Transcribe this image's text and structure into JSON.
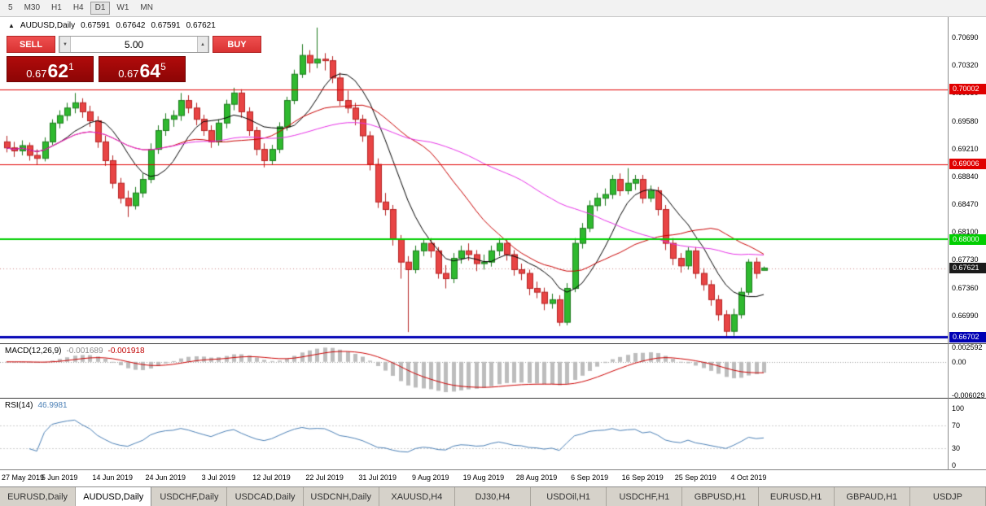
{
  "toolbar": {
    "timeframes": [
      {
        "label": "5",
        "active": false
      },
      {
        "label": "M30",
        "active": false
      },
      {
        "label": "H1",
        "active": false
      },
      {
        "label": "H4",
        "active": false
      },
      {
        "label": "D1",
        "active": true
      },
      {
        "label": "W1",
        "active": false
      },
      {
        "label": "MN",
        "active": false
      }
    ]
  },
  "chart_header": {
    "collapse_icon": "▲",
    "symbol_label": "AUDUSD,Daily",
    "open": "0.67591",
    "high": "0.67642",
    "low": "0.67591",
    "close": "0.67621"
  },
  "trade_widget": {
    "sell_label": "SELL",
    "buy_label": "BUY",
    "volume": "5.00",
    "spinner_down": "▼",
    "spinner_up": "▲",
    "sell_price": {
      "prefix": "0.67",
      "big": "62",
      "sup": "1"
    },
    "buy_price": {
      "prefix": "0.67",
      "big": "64",
      "sup": "5"
    }
  },
  "chart_data": {
    "type": "candlestick",
    "symbol": "AUDUSD",
    "timeframe": "Daily",
    "price_range": {
      "max": 0.7096,
      "min": 0.6662
    },
    "y_axis_labels": [
      "0.70690",
      "0.70320",
      "0.69950",
      "0.69580",
      "0.69210",
      "0.68840",
      "0.68470",
      "0.68100",
      "0.67730",
      "0.67360",
      "0.66990"
    ],
    "price_lines": [
      {
        "price": 0.70002,
        "label": "0.70002",
        "color": "#e00000",
        "width": 1
      },
      {
        "price": 0.69006,
        "label": "0.69006",
        "color": "#e00000",
        "width": 1
      },
      {
        "price": 0.68,
        "label": "0.68000",
        "color": "#00ce00",
        "width": 2
      },
      {
        "price": 0.66702,
        "label": "0.66702",
        "color": "#0000b4",
        "width": 3
      }
    ],
    "current_price": {
      "price": 0.67621,
      "label": "0.67621",
      "color": "#1b1b1b"
    },
    "moving_averages": [
      {
        "period": 8,
        "color": "#000000"
      },
      {
        "period": 20,
        "color": "#c80000"
      },
      {
        "period": 40,
        "color": "#e632e6"
      }
    ],
    "style": {
      "up_fill": "#2fb92f",
      "up_border": "#1d7a1d",
      "down_fill": "#e84545",
      "down_border": "#b52222",
      "macd_hist": "#bdbdbd",
      "macd_signal": "#cc0000",
      "rsi_line": "#4a7fb5",
      "bid_line": "#cc8888"
    },
    "x_labels": [
      {
        "i": 0,
        "t": "27 May 2019"
      },
      {
        "i": 7,
        "t": "5 Jun 2019"
      },
      {
        "i": 14,
        "t": "14 Jun 2019"
      },
      {
        "i": 21,
        "t": "24 Jun 2019"
      },
      {
        "i": 28,
        "t": "3 Jul 2019"
      },
      {
        "i": 35,
        "t": "12 Jul 2019"
      },
      {
        "i": 42,
        "t": "22 Jul 2019"
      },
      {
        "i": 49,
        "t": "31 Jul 2019"
      },
      {
        "i": 56,
        "t": "9 Aug 2019"
      },
      {
        "i": 63,
        "t": "19 Aug 2019"
      },
      {
        "i": 70,
        "t": "28 Aug 2019"
      },
      {
        "i": 77,
        "t": "6 Sep 2019"
      },
      {
        "i": 84,
        "t": "16 Sep 2019"
      },
      {
        "i": 91,
        "t": "25 Sep 2019"
      },
      {
        "i": 98,
        "t": "4 Oct 2019"
      }
    ],
    "candles": [
      [
        0.693,
        0.6938,
        0.6916,
        0.6922
      ],
      [
        0.6922,
        0.693,
        0.691,
        0.6918
      ],
      [
        0.6918,
        0.6932,
        0.6912,
        0.6925
      ],
      [
        0.6925,
        0.6929,
        0.6905,
        0.6912
      ],
      [
        0.6912,
        0.692,
        0.69,
        0.6908
      ],
      [
        0.6908,
        0.6936,
        0.6904,
        0.693
      ],
      [
        0.693,
        0.696,
        0.6926,
        0.6955
      ],
      [
        0.6955,
        0.6972,
        0.6948,
        0.6965
      ],
      [
        0.6965,
        0.6982,
        0.6958,
        0.6975
      ],
      [
        0.6975,
        0.6995,
        0.6968,
        0.6982
      ],
      [
        0.6982,
        0.6988,
        0.6962,
        0.697
      ],
      [
        0.697,
        0.6978,
        0.695,
        0.6958
      ],
      [
        0.6958,
        0.6964,
        0.6922,
        0.693
      ],
      [
        0.693,
        0.6938,
        0.6898,
        0.6905
      ],
      [
        0.6905,
        0.6912,
        0.6868,
        0.6875
      ],
      [
        0.6875,
        0.6882,
        0.6848,
        0.6855
      ],
      [
        0.6855,
        0.6865,
        0.683,
        0.6845
      ],
      [
        0.6845,
        0.687,
        0.684,
        0.6862
      ],
      [
        0.6862,
        0.6888,
        0.6856,
        0.688
      ],
      [
        0.688,
        0.6928,
        0.6875,
        0.692
      ],
      [
        0.692,
        0.6952,
        0.6914,
        0.6945
      ],
      [
        0.6945,
        0.6968,
        0.6938,
        0.696
      ],
      [
        0.696,
        0.6972,
        0.695,
        0.6965
      ],
      [
        0.6965,
        0.6995,
        0.6958,
        0.6985
      ],
      [
        0.6985,
        0.6992,
        0.6968,
        0.6975
      ],
      [
        0.6975,
        0.6982,
        0.6952,
        0.696
      ],
      [
        0.696,
        0.6966,
        0.6938,
        0.6945
      ],
      [
        0.6945,
        0.6952,
        0.6922,
        0.693
      ],
      [
        0.693,
        0.696,
        0.6925,
        0.6955
      ],
      [
        0.6955,
        0.6986,
        0.6948,
        0.698
      ],
      [
        0.698,
        0.7002,
        0.6972,
        0.6995
      ],
      [
        0.6995,
        0.7,
        0.6962,
        0.697
      ],
      [
        0.697,
        0.6976,
        0.6938,
        0.6945
      ],
      [
        0.6945,
        0.695,
        0.6912,
        0.692
      ],
      [
        0.692,
        0.6928,
        0.6896,
        0.6905
      ],
      [
        0.6905,
        0.6926,
        0.69,
        0.692
      ],
      [
        0.692,
        0.6956,
        0.6915,
        0.695
      ],
      [
        0.695,
        0.699,
        0.6945,
        0.6985
      ],
      [
        0.6985,
        0.7026,
        0.698,
        0.702
      ],
      [
        0.702,
        0.706,
        0.7015,
        0.7045
      ],
      [
        0.7045,
        0.7052,
        0.7022,
        0.7035
      ],
      [
        0.7035,
        0.7082,
        0.7028,
        0.704
      ],
      [
        0.704,
        0.7048,
        0.7025,
        0.7038
      ],
      [
        0.7038,
        0.7044,
        0.7008,
        0.7015
      ],
      [
        0.7015,
        0.7022,
        0.6978,
        0.6985
      ],
      [
        0.6985,
        0.6998,
        0.6968,
        0.6975
      ],
      [
        0.6975,
        0.6982,
        0.6952,
        0.696
      ],
      [
        0.696,
        0.6966,
        0.693,
        0.6938
      ],
      [
        0.6938,
        0.6944,
        0.6892,
        0.69
      ],
      [
        0.69,
        0.6908,
        0.6842,
        0.685
      ],
      [
        0.685,
        0.6862,
        0.6832,
        0.684
      ],
      [
        0.684,
        0.6846,
        0.6792,
        0.68
      ],
      [
        0.68,
        0.6806,
        0.6748,
        0.677
      ],
      [
        0.677,
        0.6778,
        0.6677,
        0.676
      ],
      [
        0.676,
        0.6792,
        0.6755,
        0.6785
      ],
      [
        0.6785,
        0.68,
        0.6778,
        0.6795
      ],
      [
        0.6795,
        0.6802,
        0.6776,
        0.6785
      ],
      [
        0.6785,
        0.679,
        0.6748,
        0.6755
      ],
      [
        0.6755,
        0.6766,
        0.6735,
        0.6748
      ],
      [
        0.6748,
        0.6782,
        0.6742,
        0.6775
      ],
      [
        0.6775,
        0.6792,
        0.6768,
        0.6785
      ],
      [
        0.6785,
        0.6795,
        0.6772,
        0.678
      ],
      [
        0.678,
        0.6786,
        0.6758,
        0.6768
      ],
      [
        0.6768,
        0.678,
        0.676,
        0.677
      ],
      [
        0.677,
        0.6792,
        0.6764,
        0.6785
      ],
      [
        0.6785,
        0.6802,
        0.6778,
        0.6795
      ],
      [
        0.6795,
        0.68,
        0.6772,
        0.678
      ],
      [
        0.678,
        0.6786,
        0.6752,
        0.676
      ],
      [
        0.676,
        0.6768,
        0.6746,
        0.6755
      ],
      [
        0.6755,
        0.676,
        0.6726,
        0.6735
      ],
      [
        0.6735,
        0.6744,
        0.6722,
        0.673
      ],
      [
        0.673,
        0.6736,
        0.6706,
        0.6715
      ],
      [
        0.6715,
        0.6728,
        0.6708,
        0.672
      ],
      [
        0.672,
        0.6726,
        0.6685,
        0.669
      ],
      [
        0.669,
        0.6742,
        0.6686,
        0.6735
      ],
      [
        0.6735,
        0.6802,
        0.673,
        0.6795
      ],
      [
        0.6795,
        0.6822,
        0.6788,
        0.6815
      ],
      [
        0.6815,
        0.6852,
        0.681,
        0.6845
      ],
      [
        0.6845,
        0.6862,
        0.6838,
        0.6855
      ],
      [
        0.6855,
        0.6868,
        0.6845,
        0.686
      ],
      [
        0.686,
        0.6886,
        0.6854,
        0.688
      ],
      [
        0.688,
        0.6888,
        0.6858,
        0.6865
      ],
      [
        0.6865,
        0.6895,
        0.686,
        0.6875
      ],
      [
        0.6875,
        0.6886,
        0.6866,
        0.688
      ],
      [
        0.688,
        0.6886,
        0.6848,
        0.6855
      ],
      [
        0.6855,
        0.6872,
        0.685,
        0.6865
      ],
      [
        0.6865,
        0.687,
        0.6832,
        0.684
      ],
      [
        0.684,
        0.6846,
        0.6786,
        0.6795
      ],
      [
        0.6795,
        0.6802,
        0.6766,
        0.6775
      ],
      [
        0.6775,
        0.6782,
        0.6756,
        0.6765
      ],
      [
        0.6765,
        0.679,
        0.676,
        0.6785
      ],
      [
        0.6785,
        0.679,
        0.6748,
        0.6755
      ],
      [
        0.6755,
        0.6762,
        0.6732,
        0.674
      ],
      [
        0.674,
        0.6746,
        0.6712,
        0.672
      ],
      [
        0.672,
        0.6726,
        0.6692,
        0.67
      ],
      [
        0.67,
        0.6706,
        0.667,
        0.6678
      ],
      [
        0.6678,
        0.6708,
        0.6672,
        0.67
      ],
      [
        0.67,
        0.6736,
        0.6695,
        0.673
      ],
      [
        0.673,
        0.6774,
        0.6726,
        0.677
      ],
      [
        0.677,
        0.6776,
        0.6748,
        0.6755
      ],
      [
        0.67591,
        0.67642,
        0.67591,
        0.67621
      ]
    ],
    "macd": {
      "name": "MACD(12,26,9)",
      "value_main": "-0.001689",
      "value_signal": "-0.001918",
      "fast": 12,
      "slow": 26,
      "signal": 9,
      "scale_labels": [
        "0.002592",
        "0.00",
        "-0.006029"
      ],
      "range": {
        "max": 0.0032,
        "min": -0.0065
      }
    },
    "rsi": {
      "name": "RSI(14)",
      "value": "46.9981",
      "period": 14,
      "levels": [
        100,
        70,
        30,
        0
      ],
      "range": {
        "max": 100,
        "min": 0
      }
    }
  },
  "tabbar": {
    "tabs": [
      {
        "label": "EURUSD,Daily",
        "active": false
      },
      {
        "label": "AUDUSD,Daily",
        "active": true
      },
      {
        "label": "USDCHF,Daily",
        "active": false
      },
      {
        "label": "USDCAD,Daily",
        "active": false
      },
      {
        "label": "USDCNH,Daily",
        "active": false
      },
      {
        "label": "XAUUSD,H4",
        "active": false
      },
      {
        "label": "DJ30,H4",
        "active": false
      },
      {
        "label": "USDOil,H1",
        "active": false
      },
      {
        "label": "USDCHF,H1",
        "active": false
      },
      {
        "label": "GBPUSD,H1",
        "active": false
      },
      {
        "label": "EURUSD,H1",
        "active": false
      },
      {
        "label": "GBPAUD,H1",
        "active": false
      },
      {
        "label": "USDJP",
        "active": false
      }
    ]
  }
}
